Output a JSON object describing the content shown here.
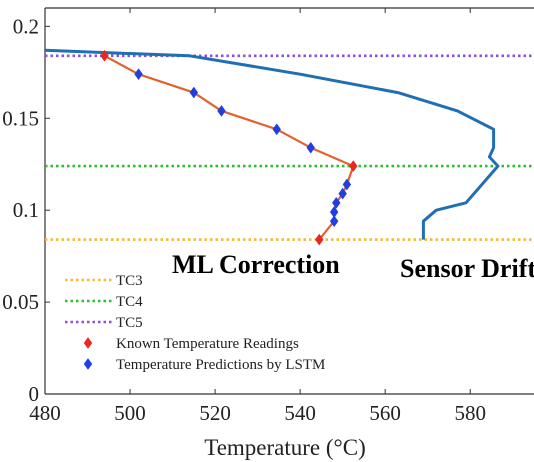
{
  "chart_data": {
    "type": "line",
    "xlabel": "Temperature (°C)",
    "ylabel": "",
    "xlim": [
      480,
      595
    ],
    "ylim": [
      0,
      0.21
    ],
    "x_ticks": [
      "480",
      "500",
      "520",
      "540",
      "560",
      "580"
    ],
    "y_ticks": [
      "0",
      "0.05",
      "0.1",
      "0.15",
      "0.2"
    ],
    "grid": false,
    "legend_position": "bottom-left",
    "horizontal_lines": [
      {
        "name": "TC3",
        "y": 0.084,
        "color": "#F5B82E",
        "style": "dotted"
      },
      {
        "name": "TC4",
        "y": 0.124,
        "color": "#2DBE2D",
        "style": "dotted"
      },
      {
        "name": "TC5",
        "y": 0.184,
        "color": "#8C4FD9",
        "style": "dotted"
      }
    ],
    "series": [
      {
        "name": "Known Temperature Readings",
        "color": "#E8281E",
        "marker": "diamond",
        "x": [
          544.5,
          552.5,
          494
        ],
        "y": [
          0.084,
          0.124,
          0.184
        ]
      },
      {
        "name": "Temperature Predictions by LSTM",
        "color": "#1F3FE0",
        "marker": "diamond",
        "x": [
          548,
          548,
          548.5,
          550,
          551,
          542.5,
          534.5,
          521.5,
          515,
          502
        ],
        "y": [
          0.094,
          0.099,
          0.104,
          0.109,
          0.114,
          0.134,
          0.144,
          0.154,
          0.164,
          0.174
        ]
      },
      {
        "color": "#E0622E",
        "x": [
          544.5,
          548,
          548,
          548.5,
          550,
          551,
          552.5,
          542.5,
          534.5,
          521.5,
          515,
          502,
          494
        ],
        "y": [
          0.084,
          0.094,
          0.099,
          0.104,
          0.109,
          0.114,
          0.124,
          0.134,
          0.144,
          0.154,
          0.164,
          0.174,
          0.184
        ]
      },
      {
        "color": "#1F6FB4",
        "x": [
          569,
          569,
          572,
          579,
          586.5,
          584.5,
          585.5,
          585.5,
          577,
          563,
          540,
          514,
          480
        ],
        "y": [
          0.084,
          0.094,
          0.1,
          0.104,
          0.124,
          0.129,
          0.134,
          0.144,
          0.154,
          0.164,
          0.174,
          0.184,
          0.187
        ]
      }
    ],
    "annotations": [
      {
        "text": "ML Correction",
        "color": "#E8281E"
      },
      {
        "text": "Sensor Drift",
        "color": "#1F6FB4"
      }
    ]
  }
}
